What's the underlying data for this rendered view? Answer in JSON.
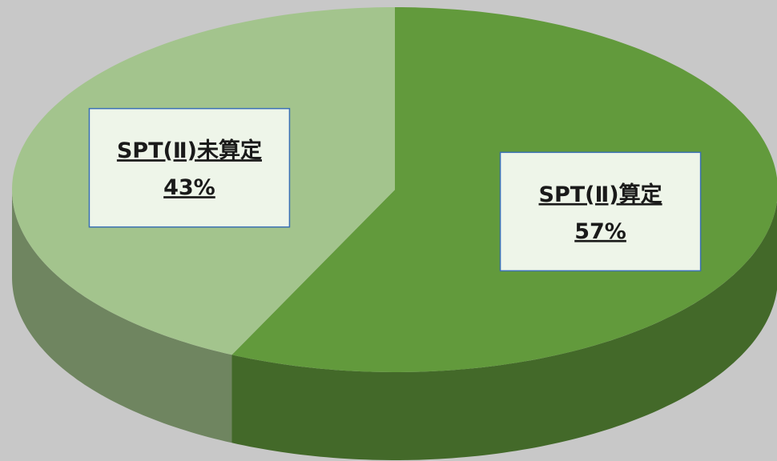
{
  "chart_data": {
    "type": "pie",
    "categories": [
      "SPT(Ⅱ)算定",
      "SPT(Ⅱ)未算定"
    ],
    "values": [
      57,
      43
    ],
    "value_labels": [
      "57%",
      "43%"
    ],
    "colors": [
      "#629a3c",
      "#a3c48d"
    ]
  }
}
